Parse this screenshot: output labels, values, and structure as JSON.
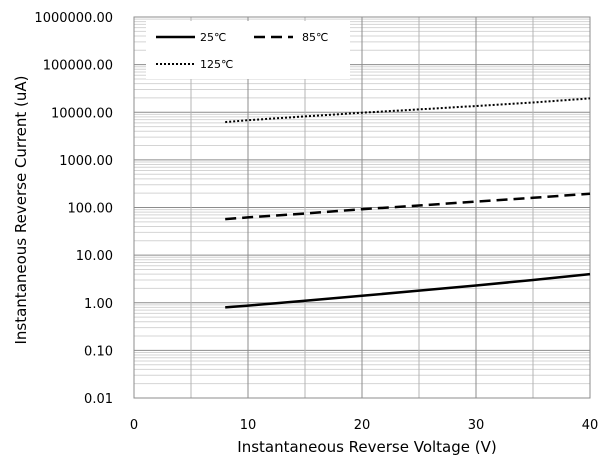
{
  "chart_data": {
    "type": "line",
    "xlabel": "Instantaneous  Reverse Voltage (V)",
    "ylabel": "Instantaneous Reverse Current (uA)",
    "xlim": [
      0,
      40
    ],
    "ylim": [
      0.01,
      1000000
    ],
    "yscale": "log",
    "grid": true,
    "legend_position": "top-left",
    "x_ticks": [
      {
        "value": 0,
        "label": "0"
      },
      {
        "value": 10,
        "label": "10"
      },
      {
        "value": 20,
        "label": "20"
      },
      {
        "value": 30,
        "label": "30"
      },
      {
        "value": 40,
        "label": "40"
      }
    ],
    "y_ticks": [
      {
        "value": 0.01,
        "label": "0.01"
      },
      {
        "value": 0.1,
        "label": "0.10"
      },
      {
        "value": 1,
        "label": "1.00"
      },
      {
        "value": 10,
        "label": "10.00"
      },
      {
        "value": 100,
        "label": "100.00"
      },
      {
        "value": 1000,
        "label": "1000.00"
      },
      {
        "value": 10000,
        "label": "10000.00"
      },
      {
        "value": 100000,
        "label": "100000.00"
      },
      {
        "value": 1000000,
        "label": "1000000.00"
      }
    ],
    "series": [
      {
        "name": "25℃",
        "style": "solid",
        "color": "#000000",
        "x": [
          8,
          10,
          15,
          20,
          25,
          30,
          35,
          40
        ],
        "y": [
          0.8,
          0.87,
          1.1,
          1.4,
          1.8,
          2.3,
          3.0,
          4.0
        ]
      },
      {
        "name": "85℃",
        "style": "dashed",
        "color": "#000000",
        "x": [
          8,
          10,
          15,
          20,
          25,
          30,
          35,
          40
        ],
        "y": [
          57,
          62,
          75,
          92,
          110,
          133,
          160,
          195
        ]
      },
      {
        "name": "125℃",
        "style": "dotted",
        "color": "#000000",
        "x": [
          8,
          10,
          15,
          20,
          25,
          30,
          35,
          40
        ],
        "y": [
          6200,
          6800,
          8200,
          9800,
          11500,
          13500,
          16000,
          19500
        ]
      }
    ]
  }
}
